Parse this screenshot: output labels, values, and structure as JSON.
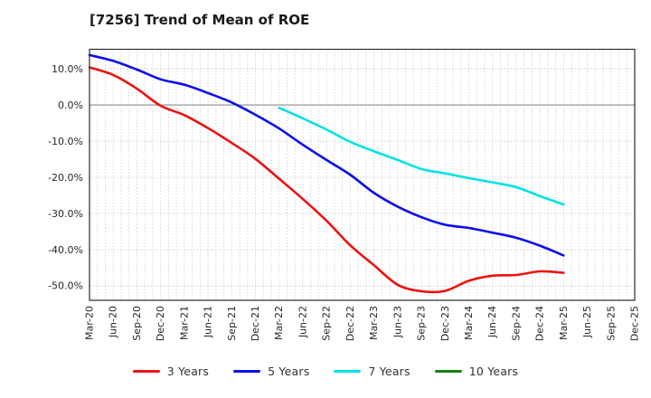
{
  "window": {
    "title": "[7256]  Trend of Mean of ROE"
  },
  "chart_data": {
    "type": "line",
    "title": "[7256]  Trend of Mean of ROE",
    "title_align": "left",
    "categories": [
      "Mar-20",
      "Jun-20",
      "Sep-20",
      "Dec-20",
      "Mar-21",
      "Jun-21",
      "Sep-21",
      "Dec-21",
      "Mar-22",
      "Jun-22",
      "Sep-22",
      "Dec-22",
      "Mar-23",
      "Jun-23",
      "Sep-23",
      "Dec-23",
      "Mar-24",
      "Jun-24",
      "Sep-24",
      "Dec-24",
      "Mar-25",
      "Jun-25",
      "Sep-25",
      "Dec-25"
    ],
    "x_tick_rotation": 90,
    "y_ticks": {
      "values": [
        10,
        0,
        -10,
        -20,
        -30,
        -40,
        -50
      ],
      "labels": [
        "10.0%",
        "0.0%",
        "-10.0%",
        "-20.0%",
        "-30.0%",
        "-40.0%",
        "-50.0%"
      ]
    },
    "ylim": [
      -54,
      15.4
    ],
    "grid": true,
    "minor_x_grid": "monthly",
    "legend_position": "bottom",
    "series": [
      {
        "name": "3 Years",
        "color": "#ee1111",
        "start_index": 0,
        "values": [
          10.4,
          8.3,
          4.5,
          -0.2,
          -2.8,
          -6.4,
          -10.5,
          -14.9,
          -20.4,
          -26.0,
          -32.0,
          -38.8,
          -44.3,
          -49.7,
          -51.5,
          -51.4,
          -48.6,
          -47.2,
          -47.0,
          -46.0,
          -46.4
        ]
      },
      {
        "name": "5 Years",
        "color": "#0d0dee",
        "start_index": 0,
        "values": [
          13.8,
          12.2,
          9.8,
          7.1,
          5.6,
          3.3,
          0.7,
          -2.7,
          -6.5,
          -11.0,
          -15.2,
          -19.3,
          -24.3,
          -28.1,
          -31.0,
          -33.1,
          -34.0,
          -35.3,
          -36.7,
          -38.9,
          -41.6
        ]
      },
      {
        "name": "7 Years",
        "color": "#00e2e2",
        "start_index": 8,
        "values": [
          -0.8,
          -3.7,
          -6.8,
          -10.2,
          -12.8,
          -15.2,
          -17.7,
          -18.9,
          -20.2,
          -21.4,
          -22.7,
          -25.2,
          -27.5
        ]
      },
      {
        "name": "10 Years",
        "color": "#128412",
        "start_index": 0,
        "values": []
      }
    ]
  }
}
